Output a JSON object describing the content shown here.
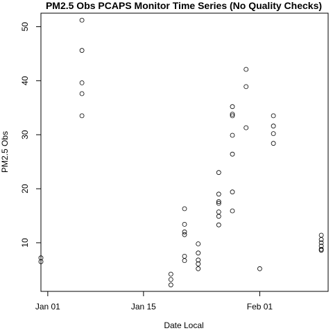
{
  "chart_data": {
    "type": "scatter",
    "title": "PM2.5 Obs PCAPS Monitor Time Series (No Quality Checks)",
    "xlabel": "Date Local",
    "ylabel": "PM2.5 Obs",
    "x_ticks": [
      "Jan 01",
      "Jan 15",
      "Feb 01"
    ],
    "y_ticks": [
      10,
      20,
      30,
      40,
      50
    ],
    "xlim": [
      "2010-12-31",
      "2011-02-11"
    ],
    "ylim": [
      1.0,
      52.5
    ],
    "marker": "open-circle",
    "grid": false,
    "series": [
      {
        "points": [
          [
            "2010-12-31",
            7.2
          ],
          [
            "2010-12-31",
            6.5
          ],
          [
            "2011-01-06",
            51.2
          ],
          [
            "2011-01-06",
            45.6
          ],
          [
            "2011-01-06",
            39.6
          ],
          [
            "2011-01-06",
            37.6
          ],
          [
            "2011-01-06",
            33.5
          ],
          [
            "2011-01-19",
            4.2
          ],
          [
            "2011-01-19",
            3.2
          ],
          [
            "2011-01-19",
            2.2
          ],
          [
            "2011-01-21",
            16.3
          ],
          [
            "2011-01-21",
            13.4
          ],
          [
            "2011-01-21",
            12.0
          ],
          [
            "2011-01-21",
            11.5
          ],
          [
            "2011-01-21",
            7.5
          ],
          [
            "2011-01-21",
            6.7
          ],
          [
            "2011-01-23",
            9.8
          ],
          [
            "2011-01-23",
            8.1
          ],
          [
            "2011-01-23",
            6.8
          ],
          [
            "2011-01-23",
            6.1
          ],
          [
            "2011-01-23",
            5.2
          ],
          [
            "2011-01-26",
            23.0
          ],
          [
            "2011-01-26",
            19.0
          ],
          [
            "2011-01-26",
            17.6
          ],
          [
            "2011-01-26",
            17.3
          ],
          [
            "2011-01-26",
            15.7
          ],
          [
            "2011-01-26",
            14.9
          ],
          [
            "2011-01-26",
            13.3
          ],
          [
            "2011-01-28",
            35.2
          ],
          [
            "2011-01-28",
            33.8
          ],
          [
            "2011-01-28",
            33.5
          ],
          [
            "2011-01-28",
            29.9
          ],
          [
            "2011-01-28",
            26.4
          ],
          [
            "2011-01-28",
            19.4
          ],
          [
            "2011-01-28",
            15.9
          ],
          [
            "2011-01-30",
            42.1
          ],
          [
            "2011-01-30",
            38.9
          ],
          [
            "2011-01-30",
            31.3
          ],
          [
            "2011-02-01",
            5.2
          ],
          [
            "2011-02-03",
            33.5
          ],
          [
            "2011-02-03",
            31.6
          ],
          [
            "2011-02-03",
            30.2
          ],
          [
            "2011-02-03",
            28.4
          ],
          [
            "2011-02-10",
            11.4
          ],
          [
            "2011-02-10",
            10.6
          ],
          [
            "2011-02-10",
            10.0
          ],
          [
            "2011-02-10",
            9.4
          ],
          [
            "2011-02-10",
            8.8
          ],
          [
            "2011-02-10",
            8.6
          ]
        ]
      }
    ]
  }
}
